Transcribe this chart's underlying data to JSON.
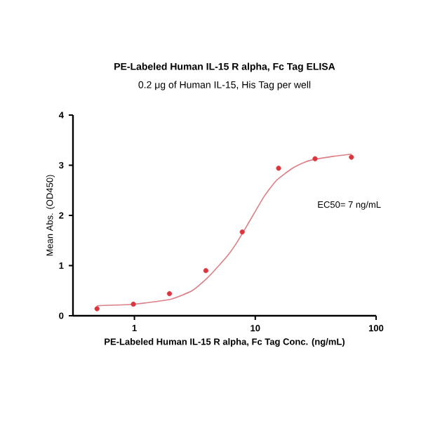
{
  "chart_data": {
    "type": "scatter",
    "title": "PE-Labeled Human IL-15 R alpha, Fc Tag ELISA",
    "subtitle": "0.2 μg of Human IL-15, His Tag per well",
    "xlabel": "PE-Labeled Human IL-15 R alpha, Fc Tag Conc. (ng/mL)",
    "ylabel": "Mean Abs. (OD450)",
    "log": "x",
    "xlim": [
      0.31,
      100
    ],
    "xticks": [
      1,
      10,
      100
    ],
    "ylim": [
      0,
      4
    ],
    "yticks": [
      0,
      1,
      2,
      3,
      4
    ],
    "grid": false,
    "annotations": [
      "EC50= 7 ng/mL"
    ],
    "series": [
      {
        "type": "line",
        "marker": "none",
        "color": "#dc7f86",
        "x": [
          0.49,
          1,
          2,
          3,
          4,
          5,
          6,
          7,
          8,
          10,
          12,
          15,
          20,
          25,
          30,
          45,
          62.5
        ],
        "values": [
          0.2,
          0.23,
          0.33,
          0.5,
          0.75,
          1.0,
          1.22,
          1.45,
          1.68,
          2.08,
          2.4,
          2.7,
          2.93,
          3.05,
          3.11,
          3.18,
          3.22
        ]
      },
      {
        "marker": "circle",
        "color": "#d9363e",
        "x": [
          0.49,
          0.98,
          1.95,
          3.9,
          7.8,
          15.6,
          31.25,
          62.5
        ],
        "values": [
          0.14,
          0.23,
          0.44,
          0.9,
          1.67,
          2.94,
          3.13,
          3.16
        ]
      }
    ]
  }
}
